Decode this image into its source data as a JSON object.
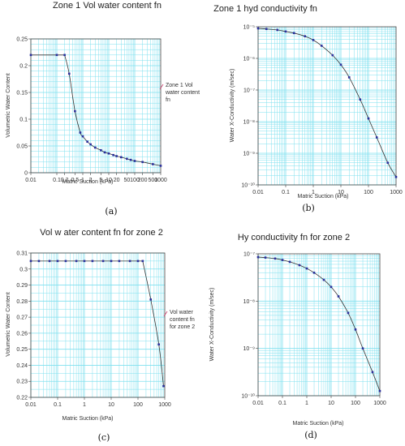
{
  "chart_data": [
    {
      "id": "a",
      "type": "line",
      "title": "Zone 1 Vol water content fn",
      "caption": "(a)",
      "xlabel": "Matric Suction (kPa)",
      "ylabel": "Volumetric Water Content",
      "xscale": "log",
      "xlim": [
        0.01,
        1000
      ],
      "ylim": [
        0,
        0.25
      ],
      "x_ticks": [
        "0.01",
        "0.1",
        "0.2",
        "0.5",
        "1",
        "2",
        "5",
        "10",
        "20",
        "50",
        "100",
        "200",
        "500",
        "1000"
      ],
      "y_ticks": [
        "0",
        "0.05",
        "0.1",
        "0.15",
        "0.2",
        "0.25"
      ],
      "legend": {
        "label": "Zone 1 Vol water content fn",
        "placement": "right"
      },
      "grid": true,
      "x": [
        0.01,
        0.1,
        0.2,
        0.3,
        0.5,
        0.8,
        1,
        1.5,
        2,
        3,
        5,
        7,
        10,
        15,
        20,
        30,
        50,
        70,
        100,
        200,
        500,
        1000
      ],
      "y": [
        0.22,
        0.22,
        0.22,
        0.185,
        0.115,
        0.075,
        0.068,
        0.058,
        0.053,
        0.047,
        0.042,
        0.038,
        0.036,
        0.033,
        0.031,
        0.029,
        0.026,
        0.024,
        0.022,
        0.02,
        0.016,
        0.013
      ]
    },
    {
      "id": "b",
      "type": "line",
      "title": "Zone 1 hyd conductivity fn",
      "caption": "(b)",
      "xlabel": "Matric Suction (kPa)",
      "ylabel": "Water X-Conductivity (m/sec)",
      "xscale": "log",
      "yscale": "log",
      "xlim": [
        0.01,
        1000
      ],
      "ylim_exp": [
        -10,
        -5
      ],
      "x_ticks": [
        "0.01",
        "0.1",
        "1",
        "10",
        "100",
        "1000"
      ],
      "y_ticks": [
        "10⁻¹⁰",
        "10⁻⁹",
        "10⁻⁸",
        "10⁻⁷",
        "10⁻⁶",
        "10⁻⁵"
      ],
      "grid": true,
      "x": [
        0.01,
        0.02,
        0.05,
        0.1,
        0.2,
        0.5,
        1,
        2,
        5,
        10,
        20,
        50,
        100,
        200,
        500,
        1000
      ],
      "y_exp": [
        -5.05,
        -5.07,
        -5.1,
        -5.15,
        -5.2,
        -5.3,
        -5.42,
        -5.6,
        -5.9,
        -6.2,
        -6.6,
        -7.3,
        -7.9,
        -8.5,
        -9.3,
        -9.75
      ]
    },
    {
      "id": "c",
      "type": "line",
      "title": "Vol w ater content fn for zone 2",
      "caption": "(c)",
      "xlabel": "Matric Suction (kPa)",
      "ylabel": "Volumetric Water Content",
      "xscale": "log",
      "xlim": [
        0.01,
        1000
      ],
      "ylim": [
        0.22,
        0.31
      ],
      "x_ticks": [
        "0.01",
        "0.1",
        "1",
        "10",
        "100",
        "1000"
      ],
      "y_ticks": [
        "0.22",
        "0.23",
        "0.24",
        "0.25",
        "0.26",
        "0.27",
        "0.28",
        "0.29",
        "0.3",
        "0.31"
      ],
      "legend": {
        "label": "Vol water content fn for zone 2",
        "placement": "right"
      },
      "grid": true,
      "x": [
        0.01,
        0.02,
        0.05,
        0.1,
        0.2,
        0.5,
        1,
        2,
        5,
        10,
        20,
        50,
        100,
        150,
        300,
        600,
        900
      ],
      "y": [
        0.305,
        0.305,
        0.305,
        0.305,
        0.305,
        0.305,
        0.305,
        0.305,
        0.305,
        0.305,
        0.305,
        0.305,
        0.305,
        0.305,
        0.281,
        0.253,
        0.227
      ]
    },
    {
      "id": "d",
      "type": "line",
      "title": "Hy conductivity fn for zone 2",
      "caption": "(d)",
      "xlabel": "Matric Suction (kPa)",
      "ylabel": "Water X-Conductivity (m/sec)",
      "xscale": "log",
      "yscale": "log",
      "xlim": [
        0.01,
        1000
      ],
      "ylim_exp": [
        -10,
        -7
      ],
      "x_ticks": [
        "0.01",
        "0.1",
        "1",
        "10",
        "100",
        "1000"
      ],
      "y_ticks": [
        "10⁻¹⁰",
        "10⁻⁹",
        "10⁻⁸",
        "10⁻⁷"
      ],
      "grid": true,
      "x": [
        0.01,
        0.02,
        0.05,
        0.1,
        0.2,
        0.5,
        1,
        2,
        5,
        10,
        20,
        50,
        100,
        200,
        500,
        1000
      ],
      "y_exp": [
        -7.07,
        -7.08,
        -7.1,
        -7.13,
        -7.17,
        -7.24,
        -7.31,
        -7.4,
        -7.55,
        -7.7,
        -7.9,
        -8.25,
        -8.6,
        -9.0,
        -9.5,
        -9.9
      ]
    }
  ],
  "colors": {
    "grid": "#7fe0ef",
    "curve": "#333333",
    "marker": "#2a2f9c",
    "legend_marker": "#c83a6a"
  }
}
